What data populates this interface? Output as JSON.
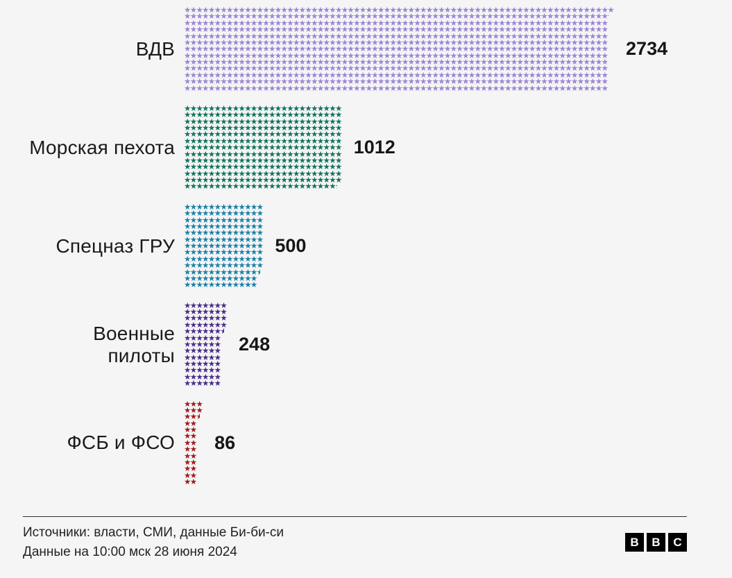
{
  "background_color": "#f5f5f6",
  "chart_data": {
    "type": "bar",
    "subtype": "pictogram-stars",
    "orientation": "horizontal",
    "icon": "star",
    "unit_per_icon": 3,
    "rows_per_bar": 13,
    "categories": [
      "ВДВ",
      "Морская пехота",
      "Спецназ ГРУ",
      "Военные пилоты",
      "ФСБ и ФСО"
    ],
    "values": [
      2734,
      1012,
      500,
      248,
      86
    ],
    "value_labels": [
      "2734",
      "1012",
      "500",
      "248",
      "86"
    ],
    "colors": [
      "#9c86d2",
      "#13745c",
      "#1d81a6",
      "#4b2d87",
      "#a21c1f"
    ],
    "category_label_color": "#1a1a1a",
    "value_label_color": "#161616",
    "legend_position": "none",
    "grid": false
  },
  "footer": {
    "source": "Источники: власти, СМИ, данные Би-би-си",
    "updated": "Данные на 10:00 мск 28 июня 2024"
  },
  "logo": {
    "name": "BBC",
    "letters": [
      "B",
      "B",
      "C"
    ]
  },
  "icons": {
    "star_glyph": "★"
  }
}
